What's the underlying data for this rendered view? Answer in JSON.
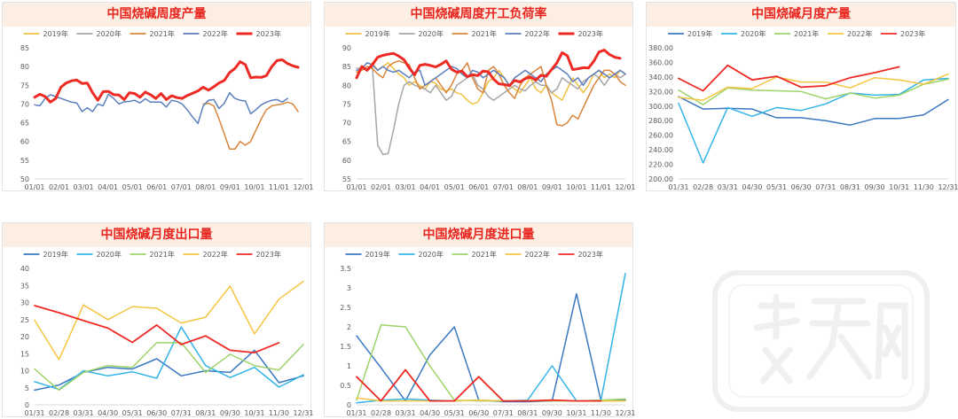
{
  "chart_data": [
    {
      "type": "line",
      "title": "中国烧碱周度产量",
      "xlabel": "",
      "ylabel": "",
      "ylim": [
        50,
        85
      ],
      "ytick_step": 5,
      "y_ticks": [
        "50",
        "55",
        "60",
        "65",
        "70",
        "75",
        "80",
        "85"
      ],
      "x_ticks": [
        "01/01",
        "02/01",
        "03/01",
        "04/01",
        "05/01",
        "06/01",
        "07/01",
        "08/01",
        "09/01",
        "10/01",
        "11/01",
        "12/01"
      ],
      "x_count": 52,
      "legend_position": "top",
      "grid": false,
      "series": [
        {
          "name": "2019年",
          "color": "#f0c040",
          "width": 1.5,
          "values": []
        },
        {
          "name": "2020年",
          "color": "#a6a6a6",
          "width": 1.5,
          "values": []
        },
        {
          "name": "2021年",
          "color": "#d9853b",
          "width": 1.5,
          "start": 32,
          "values": [
            70,
            70.2,
            69.5,
            66,
            62,
            58,
            58,
            60,
            59,
            60,
            63,
            66,
            68.5,
            69.5,
            69.8,
            70,
            70.5,
            70,
            68
          ]
        },
        {
          "name": "2022年",
          "color": "#5b7fbd",
          "width": 1.5,
          "values": [
            69.8,
            69.5,
            71.5,
            72.5,
            72,
            71.5,
            71,
            70.5,
            70.3,
            68,
            69,
            68,
            70,
            69.5,
            72.6,
            71.5,
            70,
            70.6,
            70.7,
            71,
            70.3,
            71.4,
            70.5,
            70.5,
            70.5,
            69.2,
            71,
            70.7,
            70,
            68.4,
            66.5,
            64.8,
            69.5,
            71,
            71.2,
            68.8,
            70.2,
            73,
            71.5,
            71,
            70.8,
            67.4,
            68.5,
            69.8,
            70.5,
            71,
            71.2,
            70.5,
            71.5
          ]
        },
        {
          "name": "2023年",
          "color": "#ee2a24",
          "width": 3,
          "values": [
            71.8,
            72.6,
            72,
            70.5,
            71.5,
            74.5,
            75.6,
            76.2,
            76.4,
            75.5,
            75.6,
            73,
            71,
            73.3,
            73.4,
            72.5,
            72.4,
            71.2,
            73,
            72.8,
            71.8,
            73.2,
            72.5,
            71.5,
            72.8,
            71.2,
            72.2,
            71.7,
            71.5,
            72.3,
            72.9,
            73.5,
            74.5,
            73.7,
            74.6,
            75.6,
            76.3,
            78.4,
            79.5,
            81.3,
            80.5,
            77,
            77.2,
            77.1,
            77.6,
            80,
            81.6,
            81.8,
            80.8,
            80.2,
            79.8
          ]
        }
      ]
    },
    {
      "type": "line",
      "title": "中国烧碱周度开工负荷率",
      "xlabel": "",
      "ylabel": "",
      "ylim": [
        55,
        90
      ],
      "ytick_step": 5,
      "y_ticks": [
        "55",
        "60",
        "65",
        "70",
        "75",
        "80",
        "85",
        "90"
      ],
      "x_ticks": [
        "01/01",
        "02/01",
        "03/01",
        "04/01",
        "05/01",
        "06/01",
        "07/01",
        "08/01",
        "09/01",
        "10/01",
        "11/01",
        "12/01"
      ],
      "x_count": 52,
      "legend_position": "top",
      "grid": false,
      "series": [
        {
          "name": "2019年",
          "color": "#f0c040",
          "width": 1.5,
          "values": [
            82,
            85,
            84,
            86,
            84,
            85,
            86,
            84.5,
            83,
            82,
            80,
            81,
            80,
            79,
            81,
            80.5,
            79,
            78.5,
            79,
            78,
            77.5,
            76,
            75,
            75.5,
            78,
            81,
            82,
            84,
            82,
            80,
            79,
            78,
            80,
            82,
            79,
            78,
            80,
            78,
            77,
            76,
            79,
            82,
            80,
            78,
            80,
            83,
            84,
            82,
            83,
            82,
            84,
            83
          ]
        },
        {
          "name": "2020年",
          "color": "#a6a6a6",
          "width": 1.5,
          "values": [
            84.5,
            84.7,
            84,
            85,
            64,
            61.5,
            61.8,
            68,
            75,
            80,
            81,
            80,
            79.5,
            79,
            78,
            80,
            78,
            76,
            77,
            80,
            81,
            82,
            83,
            80,
            79,
            77,
            76,
            77,
            78,
            79,
            80,
            79,
            78.5,
            80,
            81,
            80,
            80,
            78,
            79,
            82,
            81,
            80,
            79,
            81,
            82,
            83,
            82,
            80,
            82,
            83,
            82,
            83
          ]
        },
        {
          "name": "2021年",
          "color": "#d9853b",
          "width": 1.5,
          "values": [
            83.5,
            84,
            85,
            84.5,
            83,
            82,
            85,
            86,
            86.5,
            86,
            85.5,
            82,
            79,
            80,
            81,
            82,
            80,
            78,
            80,
            83,
            84,
            86,
            82,
            79,
            78,
            84,
            85,
            83,
            80,
            78,
            76.5,
            80,
            82,
            83,
            84,
            85,
            80,
            76,
            69.5,
            69.2,
            70,
            72,
            71,
            74,
            77,
            80,
            82,
            84,
            84,
            83,
            81,
            80
          ]
        },
        {
          "name": "2022年",
          "color": "#5b7fbd",
          "width": 1.5,
          "values": [
            84,
            84.5,
            86,
            85.5,
            84,
            85,
            84,
            83.5,
            84,
            83,
            82,
            83.5,
            84,
            80,
            81,
            82,
            83,
            84,
            85,
            84.5,
            83,
            82,
            84,
            83.5,
            82,
            83,
            84,
            83,
            82,
            80,
            82,
            83,
            84,
            83,
            82,
            81,
            83,
            84,
            85,
            84,
            83,
            81,
            82,
            80,
            82,
            83,
            84,
            83,
            82,
            83,
            84,
            83
          ]
        },
        {
          "name": "2023年",
          "color": "#ee2a24",
          "width": 3,
          "values": [
            82,
            85,
            84,
            85.5,
            87.5,
            88,
            88.3,
            88.5,
            87.8,
            86.8,
            84.6,
            82.8,
            85.3,
            85.6,
            85.3,
            84.9,
            85.6,
            86.5,
            84.3,
            83.5,
            83.8,
            82.3,
            82.8,
            82.6,
            83.8,
            83.6,
            81.6,
            80.4,
            80.2,
            79.9,
            81.3,
            80.9,
            81.8,
            82.2,
            81.4,
            82.7,
            82.4,
            84.2,
            86,
            88.7,
            87.9,
            84.2,
            84.4,
            84.7,
            84.6,
            86.4,
            88.9,
            89.4,
            88.2,
            87.5,
            87.2
          ]
        }
      ]
    },
    {
      "type": "line",
      "title": "中国烧碱月度产量",
      "xlabel": "",
      "ylabel": "",
      "ylim": [
        200,
        380
      ],
      "ytick_step": 20,
      "y_ticks": [
        "200.00",
        "220.00",
        "240.00",
        "260.00",
        "280.00",
        "300.00",
        "320.00",
        "340.00",
        "360.00",
        "380.00"
      ],
      "x_ticks": [
        "01/31",
        "02/28",
        "03/31",
        "04/30",
        "05/31",
        "06/30",
        "07/31",
        "08/31",
        "09/30",
        "10/31",
        "11/30",
        "12/31"
      ],
      "x_count": 12,
      "legend_position": "top",
      "grid": false,
      "series": [
        {
          "name": "2019年",
          "color": "#3a78c2",
          "width": 1.5,
          "values": [
            313,
            296,
            297,
            296,
            284,
            284,
            280,
            274,
            283,
            283,
            288,
            309
          ]
        },
        {
          "name": "2020年",
          "color": "#33b4e8",
          "width": 1.5,
          "values": [
            304,
            222,
            298,
            286,
            298,
            294,
            303,
            318,
            315,
            316,
            336,
            338
          ]
        },
        {
          "name": "2021年",
          "color": "#9ed36a",
          "width": 1.5,
          "values": [
            322,
            302,
            325,
            322,
            321,
            320,
            310,
            318,
            311,
            315,
            330,
            337
          ]
        },
        {
          "name": "2022年",
          "color": "#f5c542",
          "width": 1.5,
          "values": [
            312,
            308,
            326,
            324,
            340,
            333,
            333,
            325,
            339,
            336,
            330,
            344
          ]
        },
        {
          "name": "2023年",
          "color": "#ee2a24",
          "width": 1.8,
          "values": [
            338,
            321,
            356,
            336,
            341,
            326,
            328,
            339,
            346,
            354
          ]
        }
      ]
    },
    {
      "type": "line",
      "title": "中国烧碱月度出口量",
      "xlabel": "",
      "ylabel": "",
      "ylim": [
        0,
        40
      ],
      "ytick_step": 5,
      "y_ticks": [
        "0",
        "5",
        "10",
        "15",
        "20",
        "25",
        "30",
        "35",
        "40"
      ],
      "x_ticks": [
        "01/31",
        "02/28",
        "03/31",
        "04/30",
        "05/31",
        "06/30",
        "07/31",
        "08/31",
        "09/30",
        "10/31",
        "11/30",
        "12/31"
      ],
      "x_count": 12,
      "legend_position": "top",
      "grid": false,
      "series": [
        {
          "name": "2019年",
          "color": "#3a78c2",
          "width": 1.5,
          "values": [
            4.3,
            5.8,
            9.5,
            11,
            10.5,
            13.5,
            8.5,
            10,
            9.5,
            16,
            6.5,
            8.5
          ]
        },
        {
          "name": "2020年",
          "color": "#33b4e8",
          "width": 1.5,
          "values": [
            6.8,
            4.5,
            10,
            8.5,
            9.7,
            7.8,
            22.8,
            11.5,
            8,
            11,
            5.2,
            8.8
          ]
        },
        {
          "name": "2021年",
          "color": "#9ed36a",
          "width": 1.5,
          "values": [
            10.5,
            4.3,
            9.5,
            11.5,
            11,
            18.2,
            18.2,
            9.5,
            14.8,
            11.5,
            10.2,
            17.7
          ]
        },
        {
          "name": "2022年",
          "color": "#f5c542",
          "width": 1.5,
          "values": [
            24.8,
            13.3,
            29.3,
            25,
            28.8,
            28.3,
            24,
            25.7,
            34.8,
            20.8,
            31,
            36.2
          ]
        },
        {
          "name": "2023年",
          "color": "#ee2a24",
          "width": 1.8,
          "values": [
            29.1,
            27,
            24.7,
            22.5,
            18.3,
            23.4,
            17.7,
            20.2,
            16,
            15.3,
            18.2
          ]
        }
      ]
    },
    {
      "type": "line",
      "title": "中国烧碱月度进口量",
      "xlabel": "",
      "ylabel": "",
      "ylim": [
        0,
        3.5
      ],
      "ytick_step": 0.5,
      "y_ticks": [
        "0",
        "0.5",
        "1",
        "1.5",
        "2",
        "2.5",
        "3",
        "3.5"
      ],
      "x_ticks": [
        "01/31",
        "02/28",
        "03/31",
        "04/30",
        "05/31",
        "06/30",
        "07/31",
        "08/31",
        "09/30",
        "10/31",
        "11/30",
        "12/31"
      ],
      "x_count": 12,
      "legend_position": "top",
      "grid": false,
      "series": [
        {
          "name": "2019年",
          "color": "#3a78c2",
          "width": 1.5,
          "values": [
            1.77,
            0.95,
            0.1,
            1.28,
            2,
            0.12,
            0.08,
            0.08,
            0.1,
            2.85,
            0.1,
            0.12
          ]
        },
        {
          "name": "2020年",
          "color": "#33b4e8",
          "width": 1.5,
          "values": [
            0.05,
            0.12,
            0.15,
            0.12,
            0.1,
            0.12,
            0.1,
            0.12,
            1,
            0.1,
            0.12,
            3.37
          ]
        },
        {
          "name": "2021年",
          "color": "#9ed36a",
          "width": 1.5,
          "values": [
            0.12,
            2.05,
            2,
            1,
            0.12,
            0.1,
            0.1,
            0.1,
            0.1,
            0.1,
            0.12,
            0.15
          ]
        },
        {
          "name": "2022年",
          "color": "#f5c542",
          "width": 1.5,
          "values": [
            0.18,
            0.1,
            0.1,
            0.1,
            0.1,
            0.12,
            0.1,
            0.1,
            0.12,
            0.1,
            0.1,
            0.1
          ]
        },
        {
          "name": "2023年",
          "color": "#ee2a24",
          "width": 1.8,
          "values": [
            0.72,
            0.1,
            0.9,
            0.1,
            0.1,
            0.72,
            0.1,
            0.1,
            0.12,
            0.1,
            0.1
          ]
        }
      ]
    }
  ]
}
